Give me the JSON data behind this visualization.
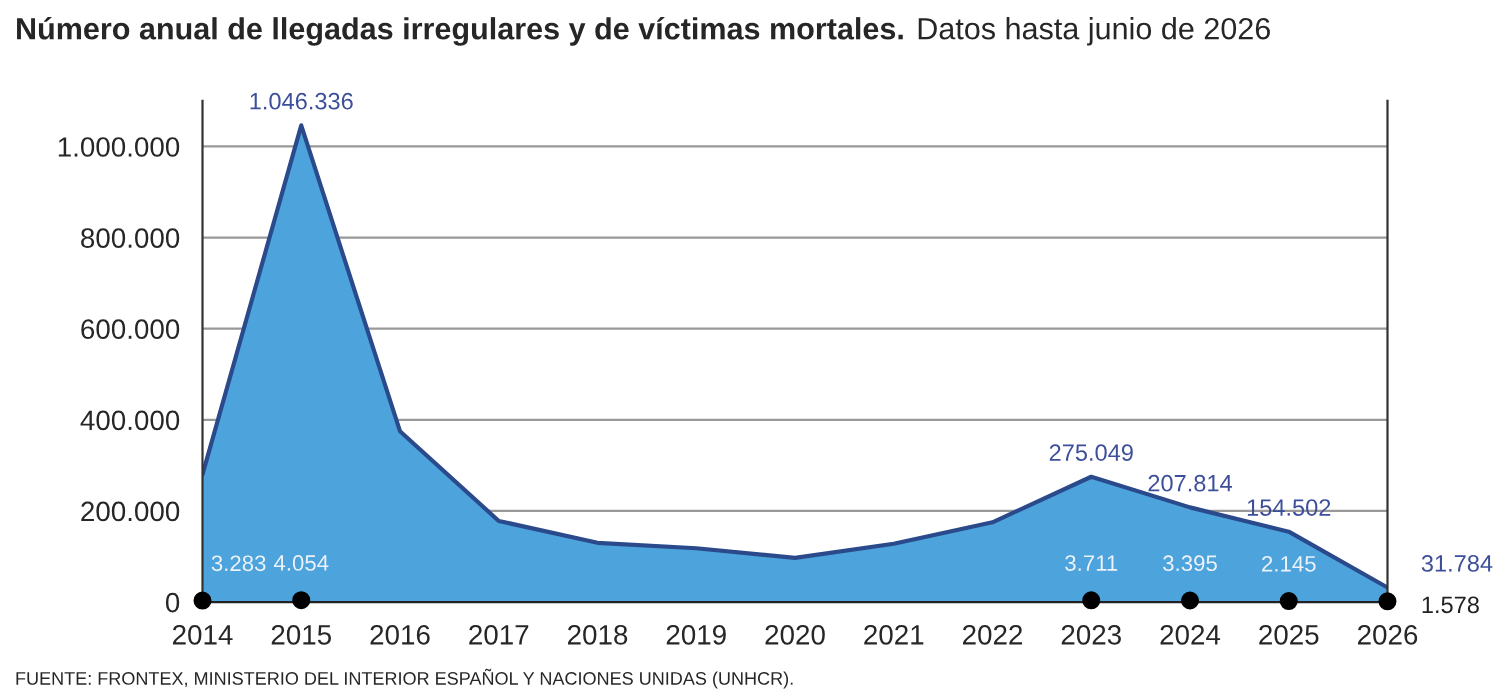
{
  "chart_data": {
    "type": "area",
    "title": "Número anual de llegadas irregulares y de víctimas mortales.",
    "subtitle": "Datos hasta junio de 2026",
    "annotations": [
      "FUENTE: FRONTEX, MINISTERIO DEL INTERIOR ESPAÑOL Y NACIONES UNIDAS (UNHCR)."
    ],
    "x": [
      2014,
      2015,
      2016,
      2017,
      2018,
      2019,
      2020,
      2021,
      2022,
      2023,
      2024,
      2025,
      2026
    ],
    "series": [
      {
        "color": "#4da3dc",
        "values": [
          280000,
          1046336,
          375000,
          178000,
          130000,
          118000,
          97000,
          128000,
          175000,
          275049,
          207814,
          154502,
          31784
        ],
        "value_labels": [
          null,
          "1.046.336",
          null,
          null,
          null,
          null,
          null,
          null,
          null,
          "275.049",
          "207.814",
          "154.502",
          "31.784"
        ]
      },
      {
        "type": "scatter",
        "color": "#000000",
        "marker": "circle",
        "values": [
          3283,
          4054,
          null,
          null,
          null,
          null,
          null,
          null,
          null,
          3711,
          3395,
          2145,
          1578
        ],
        "value_labels": [
          "3.283",
          "4.054",
          null,
          null,
          null,
          null,
          null,
          null,
          null,
          "3.711",
          "3.395",
          "2.145",
          "1.578"
        ]
      }
    ],
    "xlim": [
      2014,
      2026
    ],
    "xticks": [
      2014,
      2015,
      2016,
      2017,
      2018,
      2019,
      2020,
      2021,
      2022,
      2023,
      2024,
      2025,
      2026
    ],
    "ylim": [
      0,
      1100000
    ],
    "yticks": [
      0,
      {
        "value": 200000,
        "label": "200.000"
      },
      {
        "value": 400000,
        "label": "400.000"
      },
      {
        "value": 600000,
        "label": "600.000"
      },
      {
        "value": 800000,
        "label": "800.000"
      },
      {
        "value": 1000000,
        "label": "1.000.000"
      }
    ],
    "grid": "y"
  }
}
